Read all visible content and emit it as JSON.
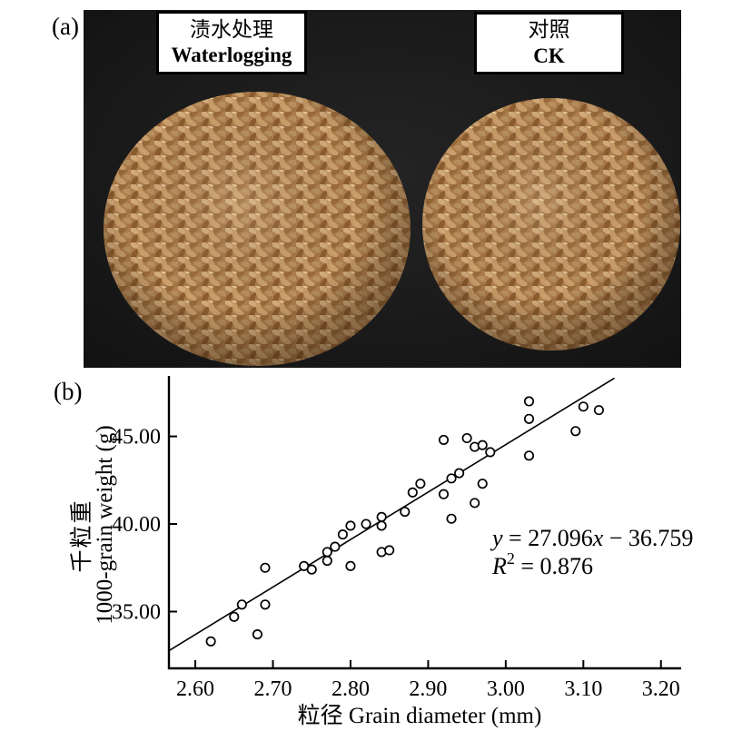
{
  "figure": {
    "panel_a_label": "(a)",
    "panel_b_label": "(b)",
    "photo": {
      "treatment_left": {
        "name_cn": "渍水处理",
        "name_en": "Waterlogging"
      },
      "treatment_right": {
        "name_cn": "对照",
        "name_en": "CK"
      }
    },
    "colors": {
      "photo_background": "#181818",
      "grain_base": "#ad7d4d",
      "grain_light": "#d2ab7c",
      "grain_dark": "#8c5c2e",
      "axis": "#000000",
      "page_background": "#ffffff"
    }
  },
  "chart_data": {
    "type": "scatter",
    "xlabel": "粒径 Grain diameter (mm)",
    "ylabel_line1_cn": "千粒重",
    "ylabel_line2_en": "1000-grain weight (g)",
    "xlim": [
      2.566,
      3.226
    ],
    "ylim": [
      31.76,
      48.45
    ],
    "grid": false,
    "x_ticks": [
      {
        "v": 2.6,
        "label": "2.60"
      },
      {
        "v": 2.7,
        "label": "2.70"
      },
      {
        "v": 2.8,
        "label": "2.80"
      },
      {
        "v": 2.9,
        "label": "2.90"
      },
      {
        "v": 3.0,
        "label": "3.00"
      },
      {
        "v": 3.1,
        "label": "3.10"
      },
      {
        "v": 3.2,
        "label": "3.20"
      }
    ],
    "y_ticks": [
      {
        "v": 35,
        "label": "35.00"
      },
      {
        "v": 40,
        "label": "40.00"
      },
      {
        "v": 45,
        "label": "45.00"
      }
    ],
    "points": [
      [
        2.62,
        33.3
      ],
      [
        2.65,
        34.7
      ],
      [
        2.66,
        35.4
      ],
      [
        2.68,
        33.7
      ],
      [
        2.69,
        35.4
      ],
      [
        2.69,
        37.5
      ],
      [
        2.74,
        37.6
      ],
      [
        2.75,
        37.4
      ],
      [
        2.77,
        38.4
      ],
      [
        2.78,
        38.7
      ],
      [
        2.77,
        37.9
      ],
      [
        2.79,
        39.4
      ],
      [
        2.8,
        39.9
      ],
      [
        2.8,
        37.6
      ],
      [
        2.82,
        40.0
      ],
      [
        2.84,
        39.9
      ],
      [
        2.84,
        40.4
      ],
      [
        2.84,
        38.4
      ],
      [
        2.85,
        38.5
      ],
      [
        2.87,
        40.7
      ],
      [
        2.88,
        41.8
      ],
      [
        2.89,
        42.3
      ],
      [
        2.92,
        41.7
      ],
      [
        2.93,
        40.3
      ],
      [
        2.93,
        42.6
      ],
      [
        2.94,
        42.9
      ],
      [
        2.92,
        44.8
      ],
      [
        2.95,
        44.9
      ],
      [
        2.96,
        44.4
      ],
      [
        2.97,
        44.5
      ],
      [
        2.98,
        44.1
      ],
      [
        2.96,
        41.2
      ],
      [
        2.97,
        42.3
      ],
      [
        3.03,
        43.9
      ],
      [
        3.03,
        47.0
      ],
      [
        3.03,
        46.0
      ],
      [
        3.09,
        45.3
      ],
      [
        3.1,
        46.7
      ],
      [
        3.12,
        46.5
      ]
    ],
    "trendline": {
      "slope": 27.096,
      "intercept": -36.759,
      "x_start": 2.566,
      "x_end": 3.14
    },
    "equation": {
      "line1_text": "y = 27.096x − 36.759",
      "line2_text": "R² = 0.876",
      "line1_segments": [
        {
          "t": "y",
          "italic": true
        },
        {
          "t": " = 27.096"
        },
        {
          "t": "x",
          "italic": true
        },
        {
          "t": " − 36.759"
        }
      ],
      "line2_segments": [
        {
          "t": "R",
          "italic": true
        },
        {
          "t": "2",
          "sup": true
        },
        {
          "t": " = 0.876"
        }
      ]
    }
  }
}
